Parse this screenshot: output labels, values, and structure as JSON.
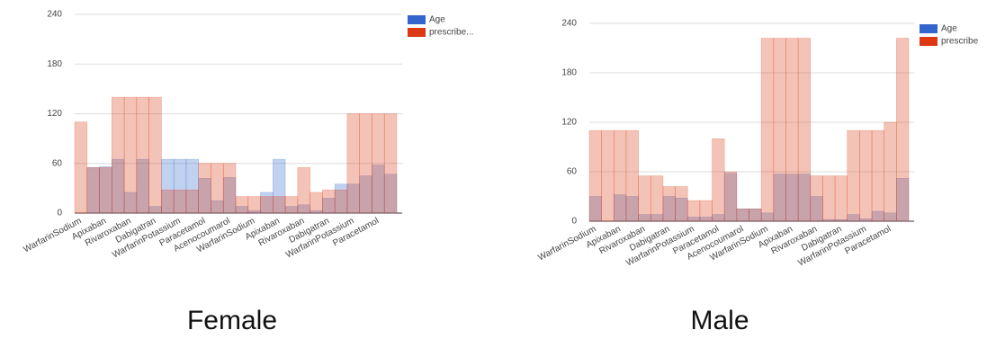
{
  "chart_data": [
    {
      "type": "bar",
      "caption": "Female",
      "categories": [
        "WarfarinSodium",
        null,
        "Apixaban",
        null,
        "Rivaroxaban",
        null,
        "Dabigatran",
        null,
        "WarfarinPotassium",
        null,
        "Paracetamol",
        null,
        "Acenocoumarol",
        null,
        "WarfarinSodium",
        null,
        "Apixaban",
        null,
        "Rivaroxaban",
        null,
        "Dabigatran",
        null,
        "WarfarinPotassium",
        null,
        "Paracetamol",
        null
      ],
      "series": [
        {
          "name": "Age",
          "color": "#3366cc",
          "values": [
            0,
            55,
            56,
            65,
            25,
            65,
            8,
            65,
            65,
            65,
            42,
            15,
            43,
            8,
            3,
            25,
            65,
            8,
            10,
            3,
            18,
            35,
            35,
            45,
            58,
            47
          ]
        },
        {
          "name": "prescribe...",
          "color": "#dc3912",
          "values": [
            110,
            55,
            55,
            140,
            140,
            140,
            140,
            28,
            28,
            28,
            60,
            60,
            60,
            20,
            20,
            20,
            20,
            20,
            55,
            25,
            28,
            28,
            120,
            120,
            120,
            120
          ]
        }
      ],
      "ylim": [
        0,
        240
      ],
      "yticks": [
        0,
        60,
        120,
        180,
        240
      ],
      "grid": true,
      "legend": "right"
    },
    {
      "type": "bar",
      "caption": "Male",
      "categories": [
        "WarfarinSodium",
        null,
        "Apixaban",
        null,
        "Rivaroxaban",
        null,
        "Dabigatran",
        null,
        "WarfarinPotassium",
        null,
        "Paracetamol",
        null,
        "Acenocoumarol",
        null,
        "WarfarinSodium",
        null,
        "Apixaban",
        null,
        "Rivaroxaban",
        null,
        "Dabigatran",
        null,
        "WarfarinPotassium",
        null,
        "Paracetamol",
        null
      ],
      "series": [
        {
          "name": "Age",
          "color": "#3366cc",
          "values": [
            30,
            0,
            32,
            30,
            8,
            8,
            30,
            28,
            5,
            5,
            8,
            58,
            15,
            15,
            10,
            57,
            57,
            57,
            30,
            2,
            2,
            8,
            3,
            12,
            10,
            52
          ]
        },
        {
          "name": "prescribe",
          "color": "#dc3912",
          "values": [
            110,
            110,
            110,
            110,
            55,
            55,
            42,
            42,
            25,
            25,
            100,
            60,
            15,
            15,
            222,
            222,
            222,
            222,
            55,
            55,
            55,
            110,
            110,
            110,
            120,
            222
          ]
        }
      ],
      "ylim": [
        0,
        240
      ],
      "yticks": [
        0,
        60,
        120,
        180,
        240
      ],
      "grid": true,
      "legend": "right"
    }
  ]
}
